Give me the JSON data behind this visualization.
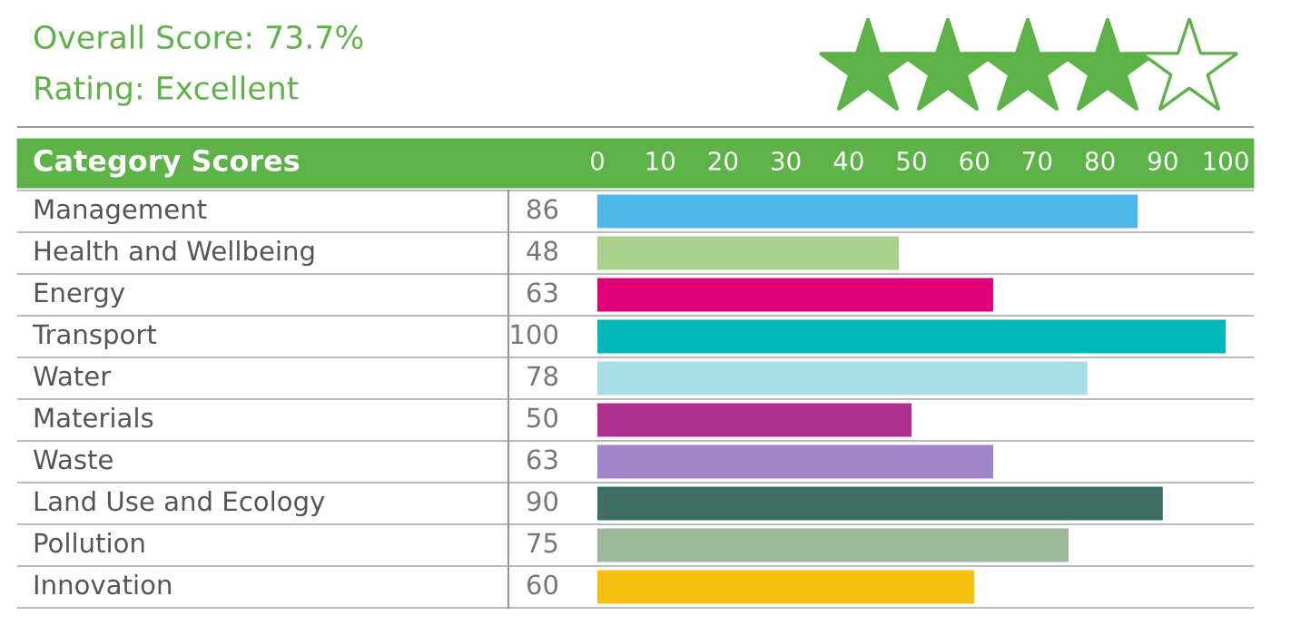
{
  "chart_data": {
    "type": "bar",
    "orientation": "horizontal",
    "title": "Overall Score: 73.7%",
    "subtitle": "Rating: Excellent",
    "annotations": [
      "Category Scores"
    ],
    "categories": [
      "Management",
      "Health and Wellbeing",
      "Energy",
      "Transport",
      "Water",
      "Materials",
      "Waste",
      "Land Use and Ecology",
      "Pollution",
      "Innovation"
    ],
    "values": [
      86,
      48,
      63,
      100,
      78,
      50,
      63,
      90,
      75,
      60
    ],
    "colors": [
      "#4db8e8",
      "#a9d18e",
      "#e0007a",
      "#00b8b8",
      "#a8dde6",
      "#b03090",
      "#a085c8",
      "#3c6e64",
      "#9bb89a",
      "#f5c010"
    ],
    "x2lim": [
      0,
      100
    ],
    "x2ticks": [
      0,
      10,
      20,
      30,
      40,
      50,
      60,
      70,
      80,
      90,
      100
    ],
    "data_labels": true,
    "grid": false,
    "legend": false
  }
}
